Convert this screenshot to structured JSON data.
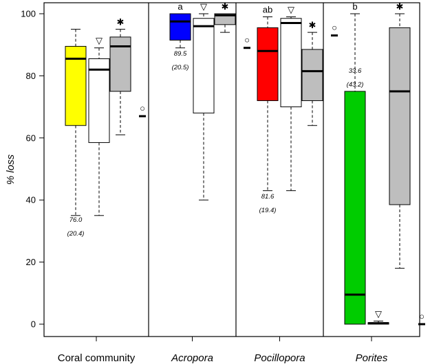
{
  "chart_data": {
    "type": "box",
    "ylabel": "% loss",
    "ylim": [
      -3,
      102
    ],
    "yticks": [
      0,
      20,
      40,
      60,
      80,
      100
    ],
    "groups": [
      {
        "label": "Coral community",
        "italic": false,
        "boxes": [
          {
            "fill": "#ffff00",
            "min": 35,
            "q1": 64,
            "median": 85.5,
            "q3": 89.5,
            "max": 95,
            "marker": null
          },
          {
            "fill": "#ffffff",
            "min": 35,
            "q1": 58.5,
            "median": 82,
            "q3": 85.5,
            "max": 89,
            "marker": "▽"
          },
          {
            "fill": "#bebebe",
            "min": 61,
            "q1": 75,
            "median": 89.5,
            "q3": 92.5,
            "max": 95,
            "marker": "✱"
          },
          {
            "fill": "#ffffff",
            "min": 67,
            "q1": 67,
            "median": 67,
            "q3": 67,
            "max": 67,
            "marker": "○"
          }
        ],
        "annotation": {
          "mean": "76.0",
          "sd": "(20.4)",
          "y": 33
        },
        "letter": ""
      },
      {
        "label": "Acropora",
        "italic": true,
        "boxes": [
          {
            "fill": "#0000ff",
            "min": 89,
            "q1": 91.5,
            "median": 97.5,
            "q3": 100,
            "max": 100,
            "marker": null
          },
          {
            "fill": "#ffffff",
            "min": 40,
            "q1": 68,
            "median": 96,
            "q3": 98.5,
            "max": 100,
            "marker": "▽"
          },
          {
            "fill": "#bebebe",
            "min": 94,
            "q1": 96.5,
            "median": 99.5,
            "q3": 100,
            "max": 100,
            "marker": "✱"
          },
          {
            "fill": "#ffffff",
            "min": 89,
            "q1": 89,
            "median": 89,
            "q3": 89,
            "max": 89,
            "marker": "○"
          }
        ],
        "annotation": {
          "mean": "89.5",
          "sd": "(20.5)",
          "y": 86.5
        },
        "letter": "a"
      },
      {
        "label": "Pocillopora",
        "italic": true,
        "boxes": [
          {
            "fill": "#ff0000",
            "min": 43,
            "q1": 72,
            "median": 88,
            "q3": 95.5,
            "max": 99,
            "marker": null
          },
          {
            "fill": "#ffffff",
            "min": 43,
            "q1": 70,
            "median": 97,
            "q3": 98.5,
            "max": 99,
            "marker": "▽"
          },
          {
            "fill": "#bebebe",
            "min": 64,
            "q1": 72,
            "median": 81.5,
            "q3": 88.5,
            "max": 94,
            "marker": "✱"
          },
          {
            "fill": "#ffffff",
            "min": 93,
            "q1": 93,
            "median": 93,
            "q3": 93,
            "max": 93,
            "marker": "○"
          }
        ],
        "annotation": {
          "mean": "81.6",
          "sd": "(19.4)",
          "y": 40.5
        },
        "letter": "ab"
      },
      {
        "label": "Porites",
        "italic": true,
        "boxes": [
          {
            "fill": "#00cc00",
            "min": 0,
            "q1": 0,
            "median": 9.5,
            "q3": 75,
            "max": 100,
            "marker": null
          },
          {
            "fill": "#ffffff",
            "min": 0,
            "q1": 0,
            "median": 0.3,
            "q3": 0.5,
            "max": 1,
            "marker": "▽"
          },
          {
            "fill": "#bebebe",
            "min": 18,
            "q1": 38.5,
            "median": 75,
            "q3": 95.5,
            "max": 100,
            "marker": "✱"
          },
          {
            "fill": "#ffffff",
            "min": 0,
            "q1": 0,
            "median": 0,
            "q3": 0,
            "max": 0,
            "marker": "○"
          }
        ],
        "annotation": {
          "mean": "33.6",
          "sd": "(43.2)",
          "y": 81
        },
        "letter": "b"
      }
    ]
  }
}
